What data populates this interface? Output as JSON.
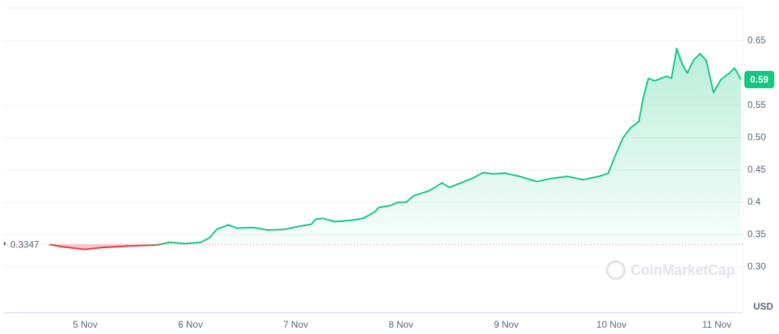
{
  "chart_data": {
    "type": "line",
    "x": [
      4.66,
      4.79,
      5.0,
      5.16,
      5.39,
      5.69,
      5.8,
      5.95,
      6.1,
      6.18,
      6.25,
      6.36,
      6.44,
      6.59,
      6.74,
      6.89,
      7.04,
      7.15,
      7.19,
      7.26,
      7.37,
      7.52,
      7.64,
      7.75,
      7.79,
      7.9,
      7.97,
      8.05,
      8.12,
      8.27,
      8.39,
      8.46,
      8.57,
      8.69,
      8.78,
      8.87,
      8.99,
      9.13,
      9.29,
      9.43,
      9.58,
      9.73,
      9.88,
      9.97,
      10.03,
      10.11,
      10.18,
      10.26,
      10.3,
      10.35,
      10.41,
      10.52,
      10.57,
      10.62,
      10.67,
      10.72,
      10.78,
      10.84,
      10.9,
      10.97,
      11.04,
      11.12,
      11.17,
      11.23
    ],
    "values": [
      0.3347,
      0.331,
      0.327,
      0.33,
      0.332,
      0.334,
      0.338,
      0.336,
      0.338,
      0.345,
      0.358,
      0.365,
      0.36,
      0.361,
      0.357,
      0.358,
      0.363,
      0.366,
      0.374,
      0.375,
      0.37,
      0.372,
      0.375,
      0.385,
      0.392,
      0.395,
      0.4,
      0.4,
      0.41,
      0.418,
      0.43,
      0.423,
      0.43,
      0.438,
      0.446,
      0.444,
      0.445,
      0.44,
      0.432,
      0.437,
      0.44,
      0.435,
      0.44,
      0.445,
      0.47,
      0.5,
      0.515,
      0.525,
      0.56,
      0.592,
      0.588,
      0.595,
      0.592,
      0.638,
      0.615,
      0.6,
      0.62,
      0.63,
      0.62,
      0.57,
      0.59,
      0.6,
      0.608,
      0.59
    ],
    "up_color": "#16c784",
    "down_color": "#ea3943",
    "reference_value": 0.3347,
    "current_value": 0.59,
    "xlim": [
      4.228,
      11.247
    ],
    "xticks": [
      {
        "value": 5,
        "label": "5 Nov"
      },
      {
        "value": 6,
        "label": "6 Nov"
      },
      {
        "value": 7,
        "label": "7 Nov"
      },
      {
        "value": 8,
        "label": "8 Nov"
      },
      {
        "value": 9,
        "label": "9 Nov"
      },
      {
        "value": 10,
        "label": "10 Nov"
      },
      {
        "value": 11,
        "label": "11 Nov"
      }
    ],
    "ylim": [
      0.229,
      0.701
    ],
    "yticks": [
      {
        "value": 0.3,
        "label": "0.30"
      },
      0.35,
      0.4,
      0.45,
      {
        "value": 0.5,
        "label": "0.50"
      },
      0.55,
      0.65
    ],
    "grid": true,
    "currency": "USD",
    "watermark": "CoinMarketCap"
  }
}
